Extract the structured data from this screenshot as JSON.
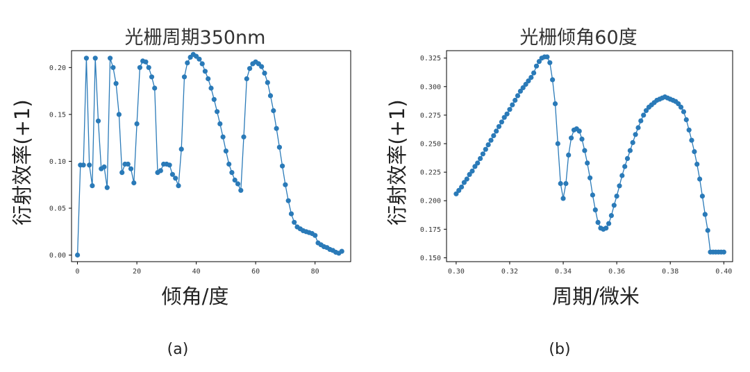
{
  "chart_data": [
    {
      "type": "line",
      "title": "光栅周期350nm",
      "xlabel": "倾角/度",
      "ylabel": "衍射效率(+1)",
      "caption": "(a)",
      "xlim": [
        -2,
        92
      ],
      "ylim": [
        -0.007,
        0.218
      ],
      "xticks": [
        0,
        20,
        40,
        60,
        80
      ],
      "xtick_labels": [
        "0",
        "20",
        "40",
        "60",
        "80"
      ],
      "yticks": [
        0.0,
        0.05,
        0.1,
        0.15,
        0.2
      ],
      "ytick_labels": [
        "0.00",
        "0.05",
        "0.10",
        "0.15",
        "0.20"
      ],
      "grid": false,
      "color": "#2a7ab8",
      "series": [
        {
          "x": [
            0,
            1,
            2,
            3,
            4,
            5,
            6,
            7,
            8,
            9,
            10,
            11,
            12,
            13,
            14,
            15,
            16,
            17,
            18,
            19,
            20,
            21,
            22,
            23,
            24,
            25,
            26,
            27,
            28,
            29,
            30,
            31,
            32,
            33,
            34,
            35,
            36,
            37,
            38,
            39,
            40,
            41,
            42,
            43,
            44,
            45,
            46,
            47,
            48,
            49,
            50,
            51,
            52,
            53,
            54,
            55,
            56,
            57,
            58,
            59,
            60,
            61,
            62,
            63,
            64,
            65,
            66,
            67,
            68,
            69,
            70,
            71,
            72,
            73,
            74,
            75,
            76,
            77,
            78,
            79,
            80,
            81,
            82,
            83,
            84,
            85,
            86,
            87,
            88,
            89
          ],
          "y": [
            0.0,
            0.096,
            0.096,
            0.21,
            0.096,
            0.074,
            0.21,
            0.143,
            0.092,
            0.094,
            0.072,
            0.21,
            0.2,
            0.183,
            0.15,
            0.088,
            0.097,
            0.097,
            0.092,
            0.077,
            0.14,
            0.2,
            0.207,
            0.206,
            0.2,
            0.19,
            0.178,
            0.088,
            0.09,
            0.097,
            0.097,
            0.096,
            0.086,
            0.082,
            0.074,
            0.113,
            0.19,
            0.205,
            0.211,
            0.214,
            0.212,
            0.209,
            0.204,
            0.196,
            0.188,
            0.178,
            0.166,
            0.153,
            0.14,
            0.126,
            0.111,
            0.097,
            0.088,
            0.08,
            0.076,
            0.069,
            0.126,
            0.188,
            0.199,
            0.204,
            0.206,
            0.204,
            0.201,
            0.194,
            0.184,
            0.17,
            0.154,
            0.135,
            0.115,
            0.095,
            0.075,
            0.058,
            0.044,
            0.035,
            0.03,
            0.028,
            0.026,
            0.025,
            0.024,
            0.023,
            0.021,
            0.013,
            0.011,
            0.009,
            0.008,
            0.006,
            0.005,
            0.003,
            0.002,
            0.004
          ]
        }
      ]
    },
    {
      "type": "line",
      "title": "光栅倾角60度",
      "xlabel": "周期/微米",
      "ylabel": "衍射效率(+1)",
      "caption": "(b)",
      "xlim": [
        0.2964,
        0.4033
      ],
      "ylim": [
        0.1466,
        0.3315
      ],
      "xticks": [
        0.3,
        0.32,
        0.34,
        0.36,
        0.38,
        0.4
      ],
      "xtick_labels": [
        "0.30",
        "0.32",
        "0.34",
        "0.36",
        "0.38",
        "0.40"
      ],
      "yticks": [
        0.15,
        0.175,
        0.2,
        0.225,
        0.25,
        0.275,
        0.3,
        0.325
      ],
      "ytick_labels": [
        "0.150",
        "0.175",
        "0.200",
        "0.225",
        "0.250",
        "0.275",
        "0.300",
        "0.325"
      ],
      "grid": false,
      "color": "#2a7ab8",
      "series": [
        {
          "x": [
            0.3,
            0.301,
            0.302,
            0.303,
            0.304,
            0.305,
            0.306,
            0.307,
            0.308,
            0.309,
            0.31,
            0.311,
            0.312,
            0.313,
            0.314,
            0.315,
            0.316,
            0.317,
            0.318,
            0.319,
            0.32,
            0.321,
            0.322,
            0.323,
            0.324,
            0.325,
            0.326,
            0.327,
            0.328,
            0.329,
            0.33,
            0.331,
            0.332,
            0.333,
            0.334,
            0.335,
            0.336,
            0.337,
            0.338,
            0.339,
            0.34,
            0.341,
            0.342,
            0.343,
            0.344,
            0.345,
            0.346,
            0.347,
            0.348,
            0.349,
            0.35,
            0.351,
            0.352,
            0.353,
            0.354,
            0.355,
            0.356,
            0.357,
            0.358,
            0.359,
            0.36,
            0.361,
            0.362,
            0.363,
            0.364,
            0.365,
            0.366,
            0.367,
            0.368,
            0.369,
            0.37,
            0.371,
            0.372,
            0.373,
            0.374,
            0.375,
            0.376,
            0.377,
            0.378,
            0.379,
            0.38,
            0.381,
            0.382,
            0.383,
            0.384,
            0.385,
            0.386,
            0.387,
            0.388,
            0.389,
            0.39,
            0.391,
            0.392,
            0.393,
            0.394,
            0.395,
            0.396,
            0.397,
            0.398,
            0.399,
            0.4
          ],
          "y": [
            0.206,
            0.209,
            0.212,
            0.216,
            0.219,
            0.223,
            0.226,
            0.23,
            0.233,
            0.237,
            0.241,
            0.245,
            0.249,
            0.253,
            0.257,
            0.261,
            0.265,
            0.269,
            0.273,
            0.276,
            0.28,
            0.284,
            0.288,
            0.292,
            0.296,
            0.299,
            0.302,
            0.305,
            0.308,
            0.312,
            0.318,
            0.322,
            0.325,
            0.326,
            0.326,
            0.321,
            0.306,
            0.285,
            0.25,
            0.215,
            0.202,
            0.215,
            0.24,
            0.255,
            0.262,
            0.263,
            0.261,
            0.254,
            0.244,
            0.233,
            0.22,
            0.205,
            0.192,
            0.181,
            0.176,
            0.175,
            0.176,
            0.18,
            0.187,
            0.196,
            0.204,
            0.213,
            0.222,
            0.23,
            0.237,
            0.244,
            0.251,
            0.258,
            0.264,
            0.27,
            0.275,
            0.279,
            0.282,
            0.284,
            0.286,
            0.288,
            0.289,
            0.29,
            0.291,
            0.29,
            0.289,
            0.288,
            0.287,
            0.285,
            0.282,
            0.278,
            0.271,
            0.262,
            0.253,
            0.243,
            0.232,
            0.219,
            0.204,
            0.188,
            0.174,
            0.155,
            0.155,
            0.155,
            0.155,
            0.155,
            0.155
          ]
        }
      ]
    }
  ]
}
